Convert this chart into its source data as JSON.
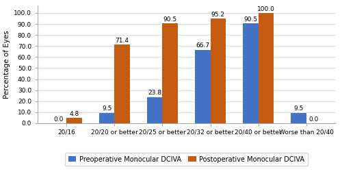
{
  "categories": [
    "20/16",
    "20/20 or better",
    "20/25 or better",
    "20/32 or better",
    "20/40 or better",
    "Worse than 20/40"
  ],
  "preop_values": [
    0.0,
    9.5,
    23.8,
    66.7,
    90.5,
    9.5
  ],
  "postop_values": [
    4.8,
    71.4,
    90.5,
    95.2,
    100.0,
    0.0
  ],
  "preop_color": "#4472C4",
  "postop_color": "#C55A11",
  "ylabel": "Percentage of Eyes",
  "ylim_max": 107,
  "yticks": [
    0.0,
    10.0,
    20.0,
    30.0,
    40.0,
    50.0,
    60.0,
    70.0,
    80.0,
    90.0,
    100.0
  ],
  "legend_preop": "Preoperative Monocular DCIVA",
  "legend_postop": "Postoperative Monocular DCIVA",
  "bar_width": 0.32,
  "annotation_fontsize": 6.5,
  "tick_fontsize": 6.5,
  "ylabel_fontsize": 7.5,
  "legend_fontsize": 7,
  "background_color": "#ffffff",
  "grid_color": "#d0d0d0"
}
